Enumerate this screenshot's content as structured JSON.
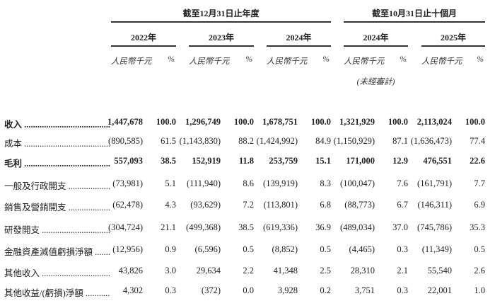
{
  "header": {
    "group_full_year": "截至12月31日止年度",
    "group_ten_months": "截至10月31日止十個月",
    "years": [
      "2022年",
      "2023年",
      "2024年",
      "2024年",
      "2025年"
    ],
    "unit_amount": "人民幣千元",
    "unit_pct": "%",
    "unaudited": "(未經審計)"
  },
  "rows": [
    {
      "label": "收入",
      "bold": true,
      "values": [
        "1,447,678",
        "100.0",
        "1,296,749",
        "100.0",
        "1,678,751",
        "100.0",
        "1,321,929",
        "100.0",
        "2,113,024",
        "100.0"
      ]
    },
    {
      "label": "成本",
      "bold": false,
      "values": [
        "(890,585)",
        "61.5",
        "(1,143,830)",
        "88.2",
        "(1,424,992)",
        "84.9",
        "(1,150,929)",
        "87.1",
        "(1,636,473)",
        "77.4"
      ]
    },
    {
      "label": "毛利",
      "bold": true,
      "values": [
        "557,093",
        "38.5",
        "152,919",
        "11.8",
        "253,759",
        "15.1",
        "171,000",
        "12.9",
        "476,551",
        "22.6"
      ]
    },
    {
      "label": "一般及行政開支",
      "bold": false,
      "values": [
        "(73,981)",
        "5.1",
        "(111,940)",
        "8.6",
        "(139,919)",
        "8.3",
        "(100,047)",
        "7.6",
        "(161,791)",
        "7.7"
      ]
    },
    {
      "label": "銷售及營銷開支",
      "bold": false,
      "values": [
        "(62,478)",
        "4.3",
        "(93,629)",
        "7.2",
        "(113,801)",
        "6.8",
        "(88,773)",
        "6.7",
        "(146,311)",
        "6.9"
      ]
    },
    {
      "label": "研發開支",
      "bold": false,
      "values": [
        "(304,724)",
        "21.1",
        "(499,368)",
        "38.5",
        "(619,336)",
        "36.9",
        "(489,034)",
        "37.0",
        "(745,786)",
        "35.3"
      ]
    },
    {
      "label": "金融資產減值虧損淨額",
      "bold": false,
      "values": [
        "(12,956)",
        "0.9",
        "(6,596)",
        "0.5",
        "(8,852)",
        "0.5",
        "(4,465)",
        "0.3",
        "(11,349)",
        "0.5"
      ]
    },
    {
      "label": "其他收入",
      "bold": false,
      "values": [
        "43,826",
        "3.0",
        "29,634",
        "2.2",
        "41,348",
        "2.5",
        "28,310",
        "2.1",
        "55,540",
        "2.6"
      ]
    },
    {
      "label": "其他收益/(虧損)淨額",
      "bold": false,
      "values": [
        "4,302",
        "0.3",
        "(372)",
        "0.0",
        "3,928",
        "0.2",
        "3,751",
        "0.3",
        "22,001",
        "1.0"
      ]
    }
  ]
}
